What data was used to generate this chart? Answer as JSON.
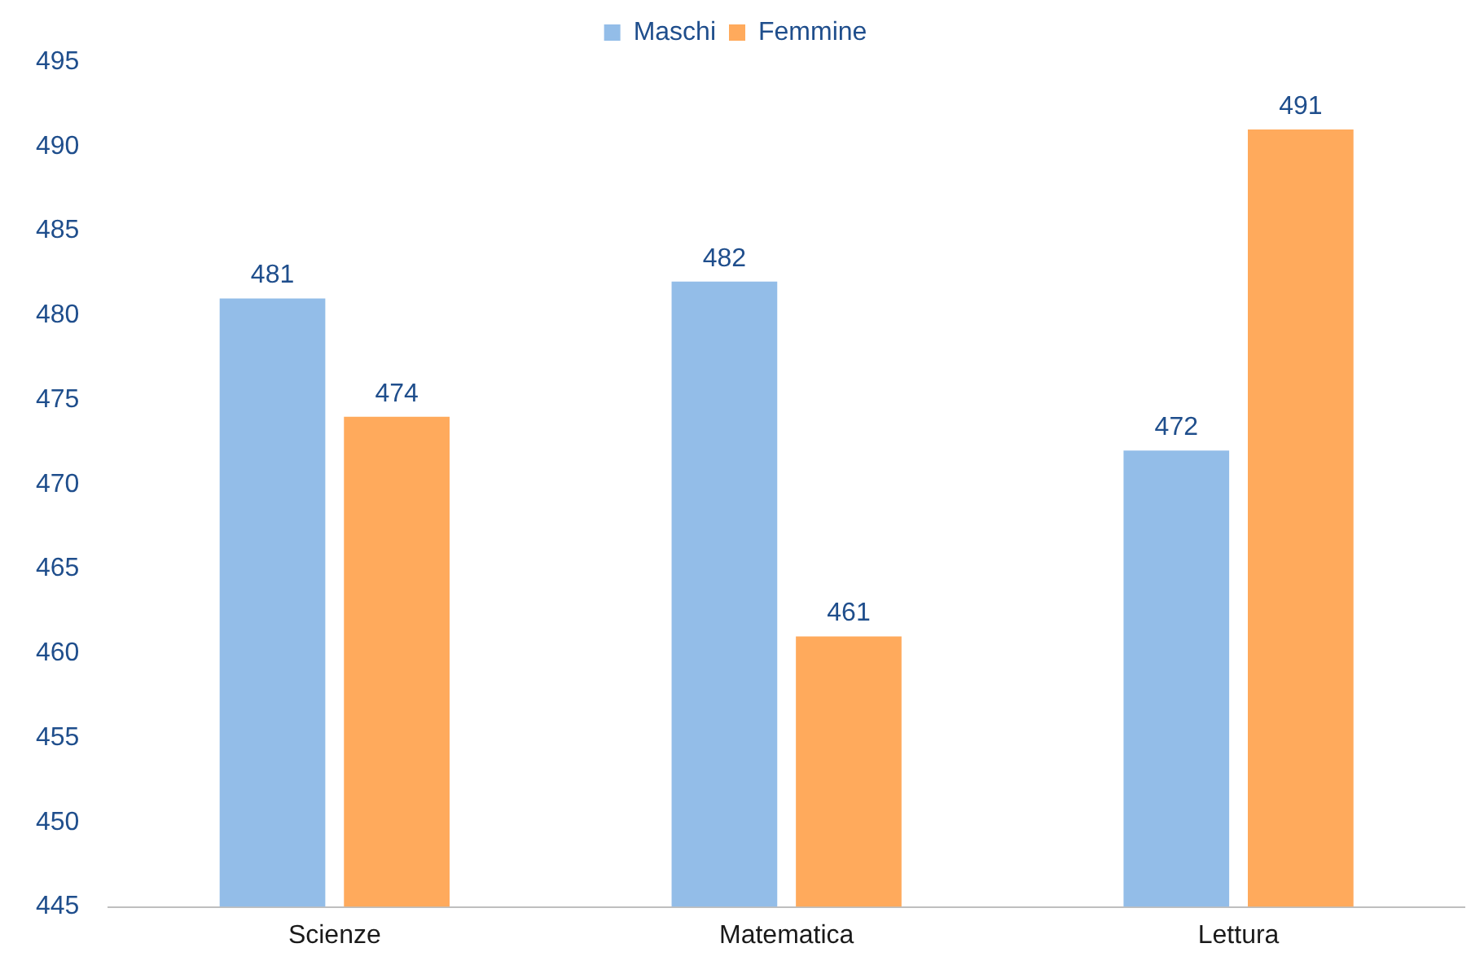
{
  "chart_data": {
    "type": "bar",
    "categories": [
      "Scienze",
      "Matematica",
      "Lettura"
    ],
    "series": [
      {
        "name": "Maschi",
        "color": "#93bde8",
        "values": [
          481,
          482,
          472
        ]
      },
      {
        "name": "Femmine",
        "color": "#ffaa5c",
        "values": [
          474,
          461,
          491
        ]
      }
    ],
    "ylim": [
      445,
      495
    ],
    "yticks": [
      445,
      450,
      455,
      460,
      465,
      470,
      475,
      480,
      485,
      490,
      495
    ],
    "grid": false,
    "legend": "top",
    "data_labels": true
  }
}
